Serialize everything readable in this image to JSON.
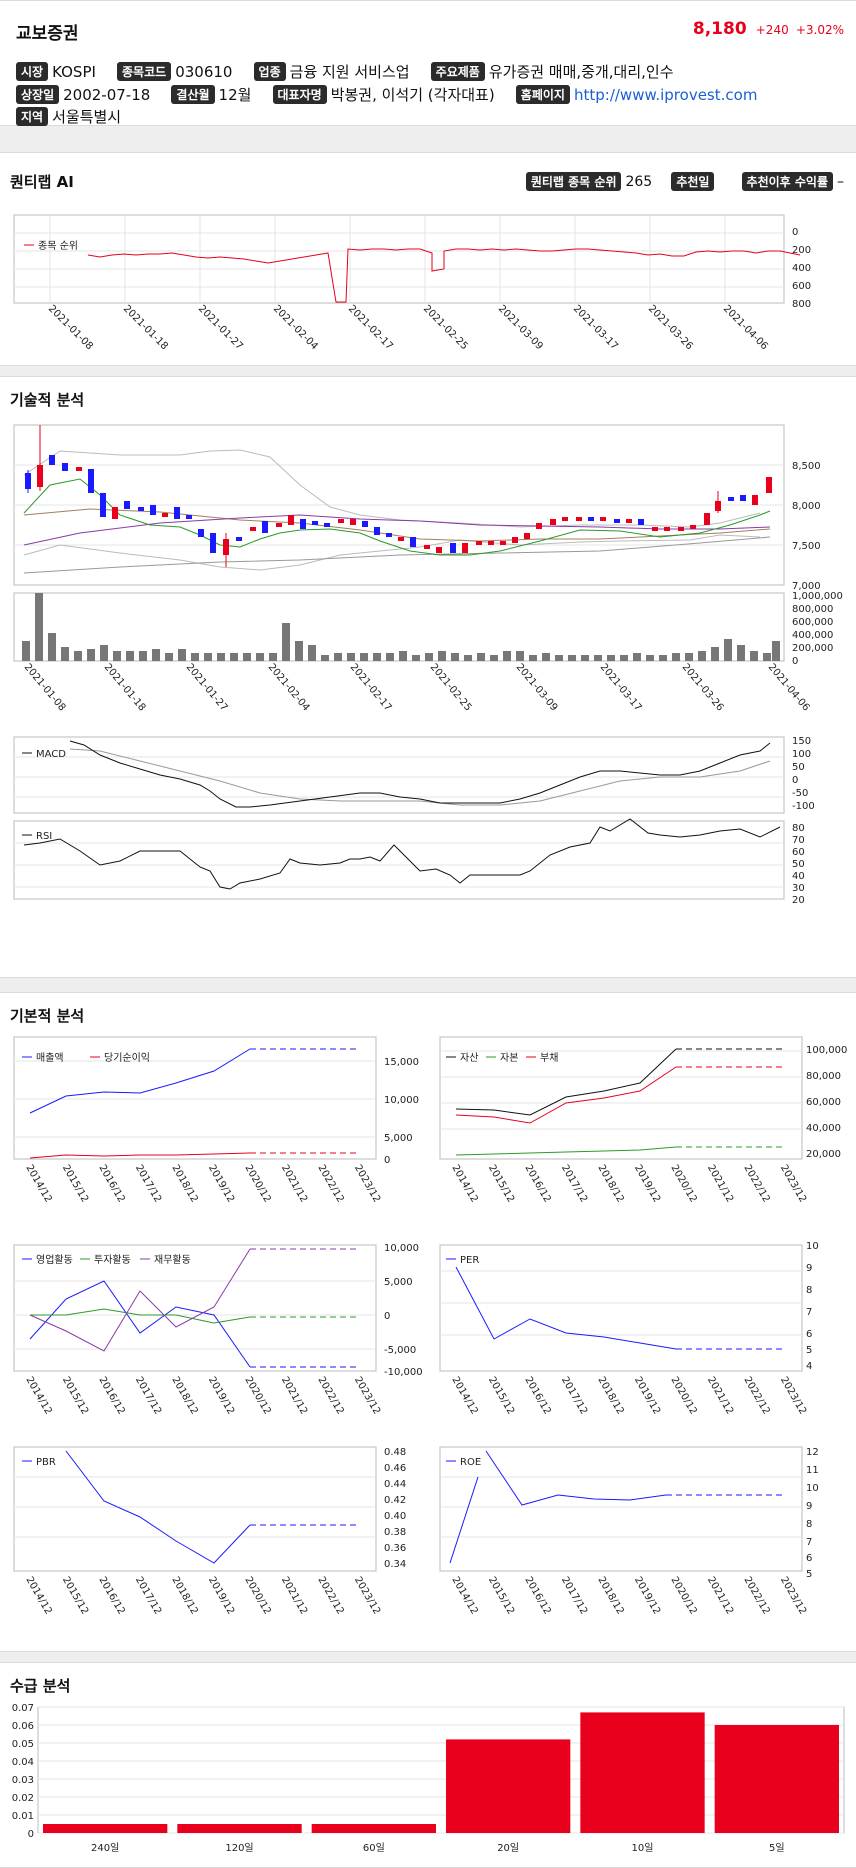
{
  "header": {
    "name": "교보증권",
    "price": "8,180",
    "change": "+240",
    "change_pct": "+3.02%"
  },
  "info": {
    "market_label": "시장",
    "market": "KOSPI",
    "code_label": "종목코드",
    "code": "030610",
    "industry_label": "업종",
    "industry": "금융 지원 서비스업",
    "products_label": "주요제품",
    "products": "유가증권 매매,중개,대리,인수",
    "listing_label": "상장일",
    "listing": "2002-07-18",
    "fiscal_label": "결산월",
    "fiscal": "12월",
    "ceo_label": "대표자명",
    "ceo": "박봉권, 이석기 (각자대표)",
    "homepage_label": "홈페이지",
    "homepage": "http://www.iprovest.com",
    "region_label": "지역",
    "region": "서울특별시"
  },
  "quant": {
    "title": "퀀티랩 AI",
    "rank_label": "퀀티랩 종목 순위",
    "rank": "265",
    "rec_date_label": "추천일",
    "rec_return_label": "추천이후 수익률",
    "rec_return": "–",
    "legend": "종목 순위"
  },
  "dates": [
    "2021-01-08",
    "2021-01-18",
    "2021-01-27",
    "2021-02-04",
    "2021-02-17",
    "2021-02-25",
    "2021-03-09",
    "2021-03-17",
    "2021-03-26",
    "2021-04-06"
  ],
  "rank_axis": [
    "0",
    "200",
    "400",
    "600",
    "800"
  ],
  "tech": {
    "title": "기술적 분석",
    "price_axis": [
      "8,500",
      "8,000",
      "7,500",
      "7,000"
    ],
    "vol_axis": [
      "1,000,000",
      "800,000",
      "600,000",
      "400,000",
      "200,000",
      "0"
    ],
    "macd_label": "MACD",
    "macd_axis": [
      "150",
      "100",
      "50",
      "0",
      "-50",
      "-100"
    ],
    "rsi_label": "RSI",
    "rsi_axis": [
      "80",
      "70",
      "60",
      "50",
      "40",
      "30",
      "20"
    ]
  },
  "fund": {
    "title": "기본적 분석",
    "years": [
      "2014/12",
      "2015/12",
      "2016/12",
      "2017/12",
      "2018/12",
      "2019/12",
      "2020/12",
      "2021/12",
      "2022/12",
      "2023/12"
    ],
    "c1": {
      "legend": [
        "매출액",
        "당기순이익"
      ],
      "axis": [
        "15,000",
        "10,000",
        "5,000",
        "0"
      ]
    },
    "c2": {
      "legend": [
        "자산",
        "자본",
        "부채"
      ],
      "axis": [
        "100,000",
        "80,000",
        "60,000",
        "40,000",
        "20,000"
      ]
    },
    "c3": {
      "legend": [
        "영업활동",
        "투자활동",
        "재무활동"
      ],
      "axis": [
        "10,000",
        "5,000",
        "0",
        "-5,000",
        "-10,000"
      ]
    },
    "c4": {
      "legend": [
        "PER"
      ],
      "axis": [
        "10",
        "9",
        "8",
        "7",
        "6",
        "5",
        "4"
      ]
    },
    "c5": {
      "legend": [
        "PBR"
      ],
      "axis": [
        "0.48",
        "0.46",
        "0.44",
        "0.42",
        "0.40",
        "0.38",
        "0.36",
        "0.34"
      ]
    },
    "c6": {
      "legend": [
        "ROE"
      ],
      "axis": [
        "12",
        "11",
        "10",
        "9",
        "8",
        "7",
        "6",
        "5"
      ]
    }
  },
  "supply": {
    "title": "수급 분석",
    "axis": [
      "0.07",
      "0.06",
      "0.05",
      "0.04",
      "0.03",
      "0.02",
      "0.01",
      "0"
    ],
    "chart_data": {
      "type": "bar",
      "categories": [
        "240일",
        "120일",
        "60일",
        "20일",
        "10일",
        "5일"
      ],
      "values": [
        0.005,
        0.005,
        0.005,
        0.052,
        0.067,
        0.06
      ],
      "ylim": [
        0,
        0.07
      ]
    }
  },
  "colors": {
    "up": "#e8001c",
    "down": "#1a1aff",
    "accent": "#e8001c"
  }
}
